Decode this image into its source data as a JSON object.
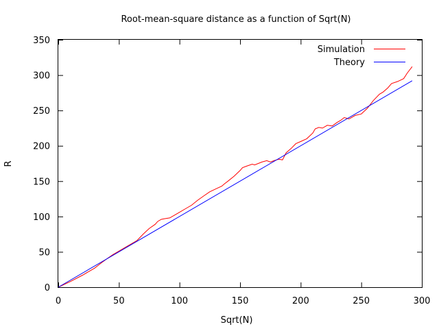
{
  "chart_data": {
    "type": "line",
    "title": "Root-mean-square distance as a function of Sqrt(N)",
    "xlabel": "Sqrt(N)",
    "ylabel": "R",
    "xlim": [
      0,
      300
    ],
    "ylim": [
      0,
      350
    ],
    "xticks": [
      0,
      50,
      100,
      150,
      200,
      250,
      300
    ],
    "yticks": [
      0,
      50,
      100,
      150,
      200,
      250,
      300,
      350
    ],
    "grid": false,
    "legend_position": "top-right",
    "series": [
      {
        "name": "Simulation",
        "color": "#ff0000",
        "x": [
          0,
          10,
          20,
          25,
          30,
          33,
          36,
          40,
          45,
          50,
          55,
          60,
          65,
          70,
          75,
          80,
          82,
          85,
          88,
          92,
          96,
          100,
          105,
          110,
          115,
          120,
          125,
          130,
          135,
          137,
          140,
          145,
          150,
          152,
          155,
          160,
          162,
          165,
          168,
          172,
          175,
          178,
          182,
          185,
          188,
          192,
          196,
          200,
          205,
          210,
          212,
          215,
          218,
          222,
          226,
          230,
          233,
          236,
          240,
          245,
          250,
          255,
          260,
          265,
          268,
          272,
          275,
          280,
          285,
          288,
          292
        ],
        "y": [
          0,
          8,
          17,
          22,
          27,
          31,
          35,
          40,
          46,
          51,
          56,
          61,
          66,
          75,
          83,
          89,
          93,
          96,
          97,
          98,
          102,
          106,
          111,
          116,
          123,
          129,
          135,
          139,
          143,
          146,
          150,
          157,
          165,
          169,
          171,
          174,
          173,
          175,
          177,
          179,
          177,
          179,
          181,
          180,
          190,
          196,
          203,
          206,
          210,
          218,
          224,
          226,
          225,
          229,
          228,
          233,
          236,
          240,
          238,
          243,
          245,
          253,
          264,
          273,
          276,
          282,
          288,
          291,
          295,
          303,
          312
        ]
      },
      {
        "name": "Theory",
        "color": "#0000ff",
        "x": [
          0,
          292
        ],
        "y": [
          0,
          292
        ]
      }
    ]
  }
}
